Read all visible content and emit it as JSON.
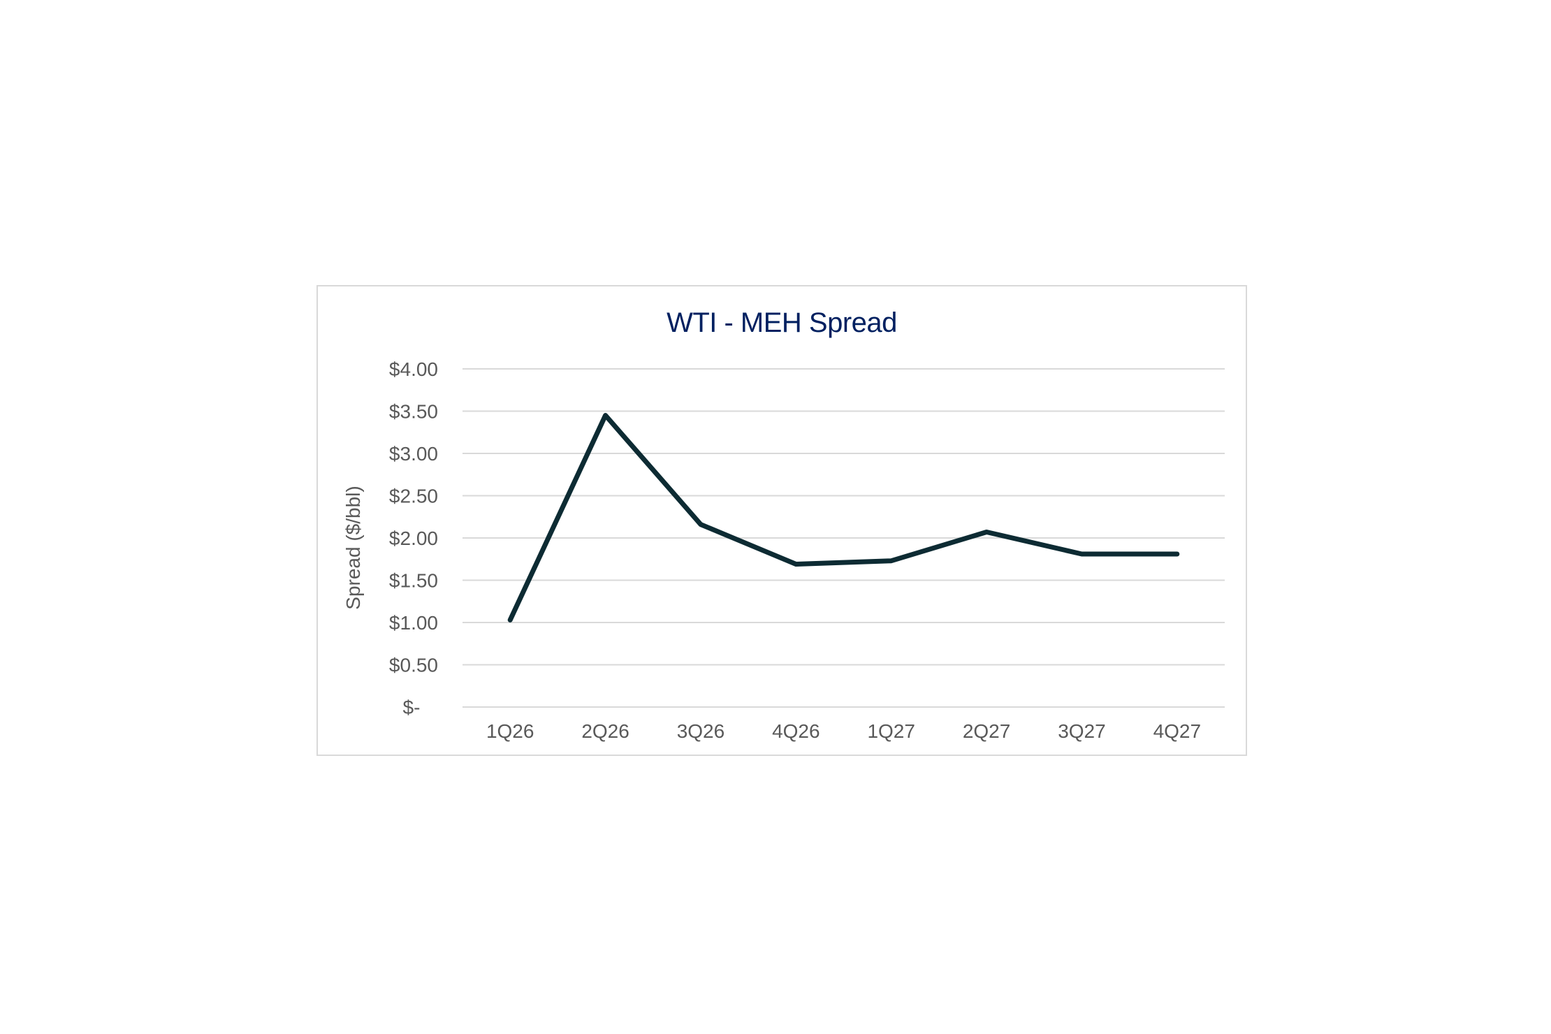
{
  "chart_data": {
    "type": "line",
    "title": "WTI - MEH Spread",
    "xlabel": "",
    "ylabel": "Spread ($/bbl)",
    "categories": [
      "1Q26",
      "2Q26",
      "3Q26",
      "4Q26",
      "1Q27",
      "2Q27",
      "3Q27",
      "4Q27"
    ],
    "series": [
      {
        "values": [
          1.03,
          3.45,
          2.16,
          1.69,
          1.73,
          2.07,
          1.81,
          1.81
        ],
        "color": "#0d2b33"
      }
    ],
    "ylim": [
      0,
      4
    ],
    "yticks": [
      {
        "value": 0,
        "label": "$-"
      },
      {
        "value": 0.5,
        "label": "$0.50"
      },
      {
        "value": 1.0,
        "label": "$1.00"
      },
      {
        "value": 1.5,
        "label": "$1.50"
      },
      {
        "value": 2.0,
        "label": "$2.00"
      },
      {
        "value": 2.5,
        "label": "$2.50"
      },
      {
        "value": 3.0,
        "label": "$3.00"
      },
      {
        "value": 3.5,
        "label": "$3.50"
      },
      {
        "value": 4.0,
        "label": "$4.00"
      }
    ],
    "grid": true,
    "legend": "none"
  }
}
